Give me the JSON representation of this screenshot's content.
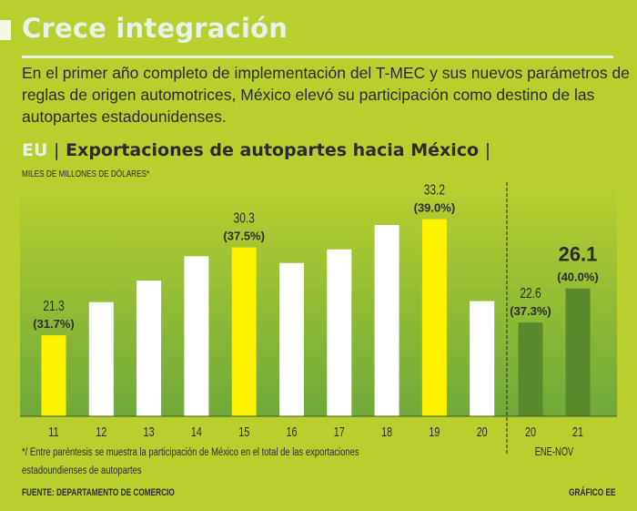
{
  "header": {
    "title": "Crece integración",
    "intro": "En el primer año completo de implementación del T-MEC y sus nuevos parámetros de reglas de origen automotrices, México elevó su participación como destino de las autopartes estadounidenses."
  },
  "subhead": {
    "country": "EU",
    "separator": "|",
    "title": "Exportaciones de autopartes hacia México",
    "trailing_separator": "|",
    "units": "MILES DE MILLONES DE DÓLARES*"
  },
  "footer": {
    "note": "*/ Entre paréntesis se muestra la participación de México en el total de las exportaciones estadoundienses de autopartes",
    "source": "FUENTE: DEPARTAMENTO DE COMERCIO",
    "credit": "GRÁFICO EE"
  },
  "colors": {
    "background": "#b9cf2e",
    "panel_top": "#b7cf2f",
    "panel_bottom": "#6fa93a",
    "highlight": "#fff200",
    "normal": "#ffffff",
    "ytd": "#5a8a2c",
    "text": "#2b2b2b",
    "title": "#e6f2ea"
  },
  "chart_data": {
    "type": "bar",
    "title": "Exportaciones de autopartes hacia México",
    "ylabel": "MILES DE MILLONES DE DÓLARES*",
    "xlabel": "",
    "ylim": [
      13,
      34
    ],
    "grid": false,
    "legend": "none",
    "value_note": "Values marked estimated are not printed in the source; they were read from bar heights and are approximate.",
    "groups": [
      {
        "name": "annual",
        "label": "",
        "categories": [
          "11",
          "12",
          "13",
          "14",
          "15",
          "16",
          "17",
          "18",
          "19",
          "20"
        ],
        "values": [
          21.3,
          24.7,
          26.9,
          29.4,
          30.3,
          28.7,
          30.1,
          32.6,
          33.2,
          24.8
        ],
        "estimated": [
          false,
          true,
          true,
          true,
          false,
          true,
          true,
          true,
          false,
          true
        ],
        "labels": [
          "21.3",
          null,
          null,
          null,
          "30.3",
          null,
          null,
          null,
          "33.2",
          null
        ],
        "shares": [
          "(31.7%)",
          null,
          null,
          null,
          "(37.5%)",
          null,
          null,
          null,
          "(39.0%)",
          null
        ],
        "highlight": [
          true,
          false,
          false,
          false,
          true,
          false,
          false,
          false,
          true,
          false
        ]
      },
      {
        "name": "ene-nov",
        "label": "ENE-NOV",
        "categories": [
          "20",
          "21"
        ],
        "values": [
          22.6,
          26.1
        ],
        "estimated": [
          false,
          false
        ],
        "labels": [
          "22.6",
          "26.1"
        ],
        "shares": [
          "(37.3%)",
          "(40.0%)"
        ],
        "emphasis": [
          false,
          true
        ]
      }
    ]
  }
}
